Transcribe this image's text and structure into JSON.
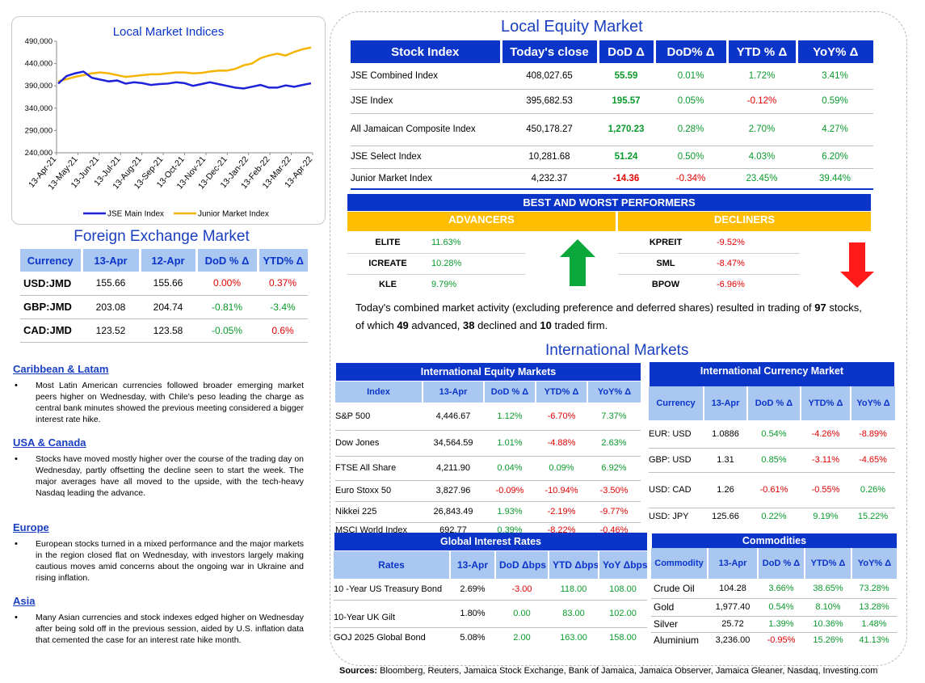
{
  "chart": {
    "title": "Local Market Indices",
    "legend": [
      "JSE Main Index",
      "Junior Market Index"
    ],
    "colors": {
      "main": "#1e22d8",
      "junior": "#f5b400"
    }
  },
  "chart_data": {
    "type": "line",
    "title": "Local Market Indices",
    "ylim": [
      240000,
      490000
    ],
    "yticks": [
      "240,000",
      "290,000",
      "340,000",
      "390,000",
      "440,000",
      "490,000"
    ],
    "xticks": [
      "13-Apr-21",
      "13-May-21",
      "13-Jun-21",
      "13-Jul-21",
      "13-Aug-21",
      "13-Sep-21",
      "13-Oct-21",
      "13-Nov-21",
      "13-Dec-21",
      "13-Jan-22",
      "13-Feb-22",
      "13-Mar-22",
      "13-Apr-22"
    ],
    "series": [
      {
        "name": "JSE Main Index",
        "values": [
          395000,
          412000,
          418000,
          422000,
          408000,
          404000,
          400000,
          402000,
          395000,
          398000,
          396000,
          392000,
          394000,
          395000,
          398000,
          396000,
          390000,
          394000,
          398000,
          394000,
          390000,
          386000,
          384000,
          388000,
          392000,
          386000,
          386000,
          391000,
          388000,
          392000,
          395682
        ]
      },
      {
        "name": "Junior Market Index",
        "values": [
          400000,
          405000,
          410000,
          414000,
          418000,
          420000,
          418000,
          414000,
          410000,
          412000,
          414000,
          416000,
          416000,
          418000,
          420000,
          420000,
          418000,
          419000,
          422000,
          424000,
          424000,
          428000,
          436000,
          440000,
          452000,
          458000,
          462000,
          458000,
          466000,
          472000,
          476000
        ]
      }
    ]
  },
  "fx": {
    "title": "Foreign Exchange Market",
    "headers": [
      "Currency",
      "13-Apr",
      "12-Apr",
      "DoD % Δ",
      "YTD% Δ"
    ],
    "rows": [
      {
        "cur": "USD:JMD",
        "a": "155.66",
        "b": "155.66",
        "dod": "0.00%",
        "ytd": "0.37%"
      },
      {
        "cur": "GBP:JMD",
        "a": "203.08",
        "b": "204.74",
        "dod": "-0.81%",
        "ytd": "-3.4%"
      },
      {
        "cur": "CAD:JMD",
        "a": "123.52",
        "b": "123.58",
        "dod": "-0.05%",
        "ytd": "0.6%"
      }
    ]
  },
  "news": [
    {
      "head": "Caribbean & Latam",
      "text": "Most Latin American currencies followed broader emerging market peers higher on Wednesday, with Chile's peso leading the charge as central bank minutes showed the previous meeting considered a bigger interest rate hike."
    },
    {
      "head": "USA & Canada",
      "text": "Stocks have moved mostly higher over the course of the trading day on Wednesday, partly offsetting the decline seen to start the week. The major averages have all moved to the upside, with the tech-heavy Nasdaq leading the advance."
    },
    {
      "head": "Europe",
      "text": "European stocks turned in a mixed performance and the major markets in the region closed flat on Wednesday, with investors largely making cautious moves amid concerns about the ongoing war in Ukraine and rising inflation."
    },
    {
      "head": "Asia",
      "text": "Many Asian currencies and stock indexes edged higher on Wednesday after being sold off in the previous session, aided by U.S. inflation data that cemented the case for an interest rate hike month."
    }
  ],
  "local_equity": {
    "title": "Local Equity Market",
    "headers": [
      "Stock Index",
      "Today's close",
      "DoD  Δ",
      "DoD% Δ",
      "YTD % Δ",
      "YoY% Δ"
    ],
    "rows": [
      {
        "name": "JSE Combined Index",
        "close": "408,027.65",
        "dod": "55.59",
        "dodp": "0.01%",
        "ytd": "1.72%",
        "yoy": "3.41%"
      },
      {
        "name": "JSE Index",
        "close": "395,682.53",
        "dod": "195.57",
        "dodp": "0.05%",
        "ytd": "-0.12%",
        "yoy": "0.59%"
      },
      {
        "name": "All Jamaican Composite Index",
        "close": "450,178.27",
        "dod": "1,270.23",
        "dodp": "0.28%",
        "ytd": "2.70%",
        "yoy": "4.27%"
      },
      {
        "name": "JSE Select Index",
        "close": "10,281.68",
        "dod": "51.24",
        "dodp": "0.50%",
        "ytd": "4.03%",
        "yoy": "6.20%"
      },
      {
        "name": "Junior Market Index",
        "close": "4,232.37",
        "dod": "-14.36",
        "dodp": "-0.34%",
        "ytd": "23.45%",
        "yoy": "39.44%"
      }
    ]
  },
  "best_worst": {
    "title": "BEST AND WORST PERFORMERS",
    "adv_label": "ADVANCERS",
    "dec_label": "DECLINERS",
    "advancers": [
      {
        "sym": "ELITE",
        "pct": "11.63%"
      },
      {
        "sym": "ICREATE",
        "pct": "10.28%"
      },
      {
        "sym": "KLE",
        "pct": "9.79%"
      }
    ],
    "decliners": [
      {
        "sym": "KPREIT",
        "pct": "-9.52%"
      },
      {
        "sym": "SML",
        "pct": "-8.47%"
      },
      {
        "sym": "BPOW",
        "pct": "-6.96%"
      }
    ]
  },
  "summary": {
    "p1": "Today's combined market activity (excluding preference and deferred shares) resulted in trading of ",
    "n1": "97",
    "p2": " stocks, of which ",
    "n2": "49",
    "p3": " advanced, ",
    "n3": "38",
    "p4": " declined and ",
    "n4": "10",
    "p5": " traded firm."
  },
  "intl": {
    "title": "International Markets",
    "equity": {
      "title": "International Equity Markets",
      "headers": [
        "Index",
        "13-Apr",
        "DoD % Δ",
        "YTD% Δ",
        "YoY% Δ"
      ],
      "rows": [
        {
          "name": "S&P 500",
          "v": "4,446.67",
          "dod": "1.12%",
          "ytd": "-6.70%",
          "yoy": "7.37%"
        },
        {
          "name": "Dow Jones",
          "v": "34,564.59",
          "dod": "1.01%",
          "ytd": "-4.88%",
          "yoy": "2.63%"
        },
        {
          "name": "FTSE All Share",
          "v": "4,211.90",
          "dod": "0.04%",
          "ytd": "0.09%",
          "yoy": "6.92%"
        },
        {
          "name": "Euro Stoxx 50",
          "v": "3,827.96",
          "dod": "-0.09%",
          "ytd": "-10.94%",
          "yoy": "-3.50%"
        },
        {
          "name": "Nikkei 225",
          "v": "26,843.49",
          "dod": "1.93%",
          "ytd": "-2.19%",
          "yoy": "-9.77%"
        },
        {
          "name": "MSCI World Index",
          "v": "692.77",
          "dod": "0.39%",
          "ytd": "-8.22%",
          "yoy": "-0.46%"
        }
      ]
    },
    "currency": {
      "title": "International Currency Market",
      "headers": [
        "Currency",
        "13-Apr",
        "DoD % Δ",
        "YTD% Δ",
        "YoY% Δ"
      ],
      "rows": [
        {
          "name": "EUR: USD",
          "v": "1.0886",
          "dod": "0.54%",
          "ytd": "-4.26%",
          "yoy": "-8.89%"
        },
        {
          "name": "GBP: USD",
          "v": "1.31",
          "dod": "0.85%",
          "ytd": "-3.11%",
          "yoy": "-4.65%"
        },
        {
          "name": "USD: CAD",
          "v": "1.26",
          "dod": "-0.61%",
          "ytd": "-0.55%",
          "yoy": "0.26%"
        },
        {
          "name": "USD: JPY",
          "v": "125.66",
          "dod": "0.22%",
          "ytd": "9.19%",
          "yoy": "15.22%"
        }
      ]
    },
    "rates": {
      "title": "Global Interest Rates",
      "headers": [
        "Rates",
        "13-Apr",
        "DoD Δbps",
        "YTD Δbps",
        "YoY Δbps"
      ],
      "rows": [
        {
          "name": "10 -Year US Treasury Bond",
          "v": "2.69%",
          "dod": "-3.00",
          "ytd": "118.00",
          "yoy": "108.00"
        },
        {
          "name": "10-Year UK Gilt",
          "v": "1.80%",
          "dod": "0.00",
          "ytd": "83.00",
          "yoy": "102.00"
        },
        {
          "name": "GOJ 2025 Global Bond",
          "v": "5.08%",
          "dod": "2.00",
          "ytd": "163.00",
          "yoy": "158.00"
        }
      ]
    },
    "commodities": {
      "title": "Commodities",
      "headers": [
        "Commodity",
        "13-Apr",
        "DoD % Δ",
        "YTD% Δ",
        "YoY% Δ"
      ],
      "rows": [
        {
          "name": "Crude Oil",
          "v": "104.28",
          "dod": "3.66%",
          "ytd": "38.65%",
          "yoy": "73.28%"
        },
        {
          "name": "Gold",
          "v": "1,977.40",
          "dod": "0.54%",
          "ytd": "8.10%",
          "yoy": "13.28%"
        },
        {
          "name": "Silver",
          "v": "25.72",
          "dod": "1.39%",
          "ytd": "10.36%",
          "yoy": "1.48%"
        },
        {
          "name": "Aluminium",
          "v": "3,236.00",
          "dod": "-0.95%",
          "ytd": "15.26%",
          "yoy": "41.13%"
        }
      ]
    }
  },
  "sources": {
    "label": "Sources:",
    "text": " Bloomberg, Reuters, Jamaica Stock Exchange, Bank of Jamaica, Jamaica Observer, Jamaica Gleaner, Nasdaq, Investing.com"
  }
}
